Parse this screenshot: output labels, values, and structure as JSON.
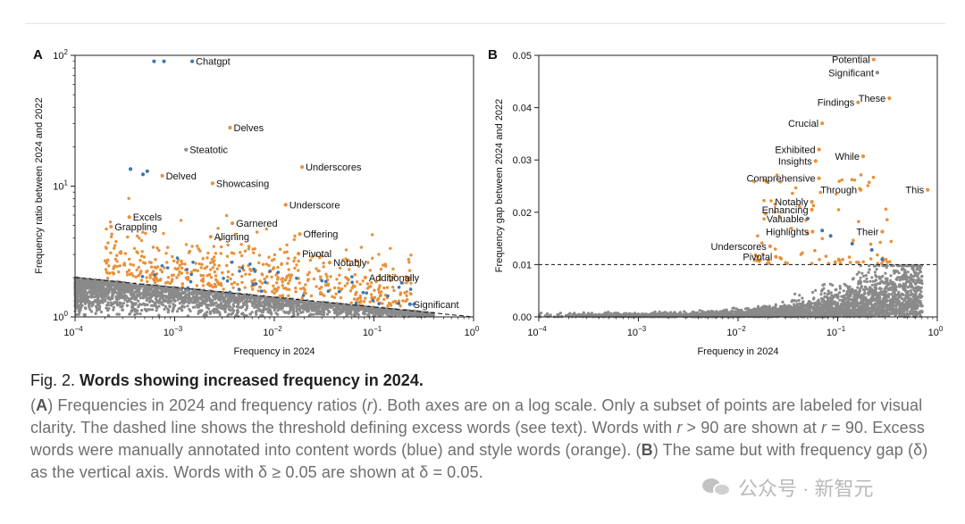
{
  "chart_data": [
    {
      "panel": "A",
      "type": "scatter",
      "xscale": "log",
      "yscale": "log",
      "xlim": [
        0.0001,
        1
      ],
      "ylim": [
        1,
        100
      ],
      "xlabel": "Frequency in 2024",
      "ylabel": "Frequency ratio between 2024 and 2022",
      "xticks": [
        {
          "value": 0.0001,
          "base": "10",
          "exp": "−4"
        },
        {
          "value": 0.001,
          "base": "10",
          "exp": "−3"
        },
        {
          "value": 0.01,
          "base": "10",
          "exp": "−2"
        },
        {
          "value": 0.1,
          "base": "10",
          "exp": "−1"
        },
        {
          "value": 1,
          "base": "10",
          "exp": "0"
        }
      ],
      "yticks": [
        {
          "value": 1,
          "base": "10",
          "exp": "0"
        },
        {
          "value": 10,
          "base": "10",
          "exp": "1"
        },
        {
          "value": 100,
          "base": "10",
          "exp": "2"
        }
      ],
      "threshold_line": [
        [
          0.0001,
          2.0
        ],
        [
          1,
          1.0
        ]
      ],
      "labeled_points": [
        {
          "word": "Chatgpt",
          "x": 0.0015,
          "y": 90,
          "color": "blue",
          "side": "right"
        },
        {
          "word": "Delves",
          "x": 0.0036,
          "y": 28,
          "color": "orange",
          "side": "right"
        },
        {
          "word": "Steatotic",
          "x": 0.0013,
          "y": 19,
          "color": "gray",
          "side": "right"
        },
        {
          "word": "Underscores",
          "x": 0.019,
          "y": 14,
          "color": "orange",
          "side": "right"
        },
        {
          "word": "Delved",
          "x": 0.00075,
          "y": 12,
          "color": "orange",
          "side": "right"
        },
        {
          "word": "Showcasing",
          "x": 0.0024,
          "y": 10.5,
          "color": "orange",
          "side": "right"
        },
        {
          "word": "Underscore",
          "x": 0.013,
          "y": 7.2,
          "color": "orange",
          "side": "right"
        },
        {
          "word": "Excels",
          "x": 0.00035,
          "y": 5.8,
          "color": "orange",
          "side": "right"
        },
        {
          "word": "Garnered",
          "x": 0.0038,
          "y": 5.2,
          "color": "orange",
          "side": "right"
        },
        {
          "word": "Grappling",
          "x": 0.00023,
          "y": 4.9,
          "color": "orange",
          "side": "right"
        },
        {
          "word": "Offering",
          "x": 0.018,
          "y": 4.3,
          "color": "orange",
          "side": "right"
        },
        {
          "word": "Aligning",
          "x": 0.0023,
          "y": 4.1,
          "color": "orange",
          "side": "right"
        },
        {
          "word": "Pivotal",
          "x": 0.0175,
          "y": 3.05,
          "color": "orange",
          "side": "right"
        },
        {
          "word": "Notably",
          "x": 0.036,
          "y": 2.6,
          "color": "orange",
          "side": "right"
        },
        {
          "word": "Additionally",
          "x": 0.082,
          "y": 2.0,
          "color": "orange",
          "side": "right"
        },
        {
          "word": "Significant",
          "x": 0.23,
          "y": 1.25,
          "color": "blue",
          "side": "right"
        }
      ],
      "extra_points": [
        {
          "x": 0.00062,
          "y": 90,
          "color": "blue"
        },
        {
          "x": 0.00078,
          "y": 90,
          "color": "blue"
        },
        {
          "x": 0.00036,
          "y": 13.5,
          "color": "blue"
        },
        {
          "x": 0.00048,
          "y": 12.3,
          "color": "blue"
        },
        {
          "x": 0.00053,
          "y": 13.0,
          "color": "blue"
        }
      ]
    },
    {
      "panel": "B",
      "type": "scatter",
      "xscale": "log",
      "yscale": "linear",
      "xlim": [
        0.0001,
        1
      ],
      "ylim": [
        0,
        0.05
      ],
      "xlabel": "Frequency in 2024",
      "ylabel": "Frequency gap between 2024 and 2022",
      "xticks": [
        {
          "value": 0.0001,
          "base": "10",
          "exp": "−4"
        },
        {
          "value": 0.001,
          "base": "10",
          "exp": "−3"
        },
        {
          "value": 0.01,
          "base": "10",
          "exp": "−2"
        },
        {
          "value": 0.1,
          "base": "10",
          "exp": "−1"
        },
        {
          "value": 1,
          "base": "10",
          "exp": "0"
        }
      ],
      "yticks": [
        {
          "value": 0,
          "label": "0.00"
        },
        {
          "value": 0.01,
          "label": "0.01"
        },
        {
          "value": 0.02,
          "label": "0.02"
        },
        {
          "value": 0.03,
          "label": "0.03"
        },
        {
          "value": 0.04,
          "label": "0.04"
        },
        {
          "value": 0.05,
          "label": "0.05"
        }
      ],
      "threshold_y": 0.01,
      "labeled_points": [
        {
          "word": "Potential",
          "x": 0.23,
          "y": 0.0492,
          "color": "orange",
          "side": "left"
        },
        {
          "word": "Significant",
          "x": 0.25,
          "y": 0.0467,
          "color": "gray",
          "side": "left"
        },
        {
          "word": "These",
          "x": 0.33,
          "y": 0.0418,
          "color": "orange",
          "side": "left"
        },
        {
          "word": "Findings",
          "x": 0.16,
          "y": 0.041,
          "color": "orange",
          "side": "left"
        },
        {
          "word": "Crucial",
          "x": 0.07,
          "y": 0.037,
          "color": "orange",
          "side": "left"
        },
        {
          "word": "Exhibited",
          "x": 0.065,
          "y": 0.032,
          "color": "orange",
          "side": "left"
        },
        {
          "word": "While",
          "x": 0.18,
          "y": 0.0307,
          "color": "orange",
          "side": "left"
        },
        {
          "word": "Insights",
          "x": 0.06,
          "y": 0.0298,
          "color": "orange",
          "side": "left"
        },
        {
          "word": "Comprehensive",
          "x": 0.065,
          "y": 0.0265,
          "color": "orange",
          "side": "left"
        },
        {
          "word": "This",
          "x": 0.8,
          "y": 0.0243,
          "color": "orange",
          "side": "left"
        },
        {
          "word": "Through",
          "x": 0.17,
          "y": 0.0243,
          "color": "orange",
          "side": "left"
        },
        {
          "word": "Notably",
          "x": 0.055,
          "y": 0.022,
          "color": "orange",
          "side": "left"
        },
        {
          "word": "Enhancing",
          "x": 0.055,
          "y": 0.0205,
          "color": "orange",
          "side": "left"
        },
        {
          "word": "Valuable",
          "x": 0.05,
          "y": 0.0188,
          "color": "blue",
          "side": "left"
        },
        {
          "word": "Their",
          "x": 0.28,
          "y": 0.0163,
          "color": "orange",
          "side": "left"
        },
        {
          "word": "Highlights",
          "x": 0.056,
          "y": 0.0163,
          "color": "orange",
          "side": "left"
        },
        {
          "word": "Underscores",
          "x": 0.021,
          "y": 0.0135,
          "color": "orange",
          "side": "left"
        },
        {
          "word": "Pivotal",
          "x": 0.024,
          "y": 0.0115,
          "color": "orange",
          "side": "left"
        }
      ],
      "extra_points": [
        {
          "x": 0.085,
          "y": 0.0155,
          "color": "blue"
        },
        {
          "x": 0.28,
          "y": 0.011,
          "color": "blue"
        },
        {
          "x": 0.14,
          "y": 0.014,
          "color": "blue"
        },
        {
          "x": 0.07,
          "y": 0.0165,
          "color": "blue"
        },
        {
          "x": 0.22,
          "y": 0.0128,
          "color": "blue"
        }
      ]
    }
  ],
  "colors": {
    "orange": "#e8913a",
    "blue": "#3d76b0",
    "gray": "#8a8a8a",
    "axis": "#222222"
  },
  "caption": {
    "fig_label": "Fig. 2.",
    "title": "Words showing increased frequency in 2024.",
    "A_label": "A",
    "A_text": "Frequencies in 2024 and frequency ratios (",
    "r_var": "r",
    "A_text2": "). Both axes are on a log scale. Only a subset of points are labeled for visual clarity. The dashed line shows the threshold defining excess words (see text). Words with ",
    "cond1": " > 90 are shown at ",
    "cond2": " = 90. Excess words were manually annotated into content words (blue) and style words (orange). (",
    "B_label": "B",
    "B_text": ") The same but with frequency gap (δ) as the vertical axis. Words with δ ≥ 0.05 are shown at δ = 0.05."
  },
  "watermark": "公众号 · 新智元"
}
